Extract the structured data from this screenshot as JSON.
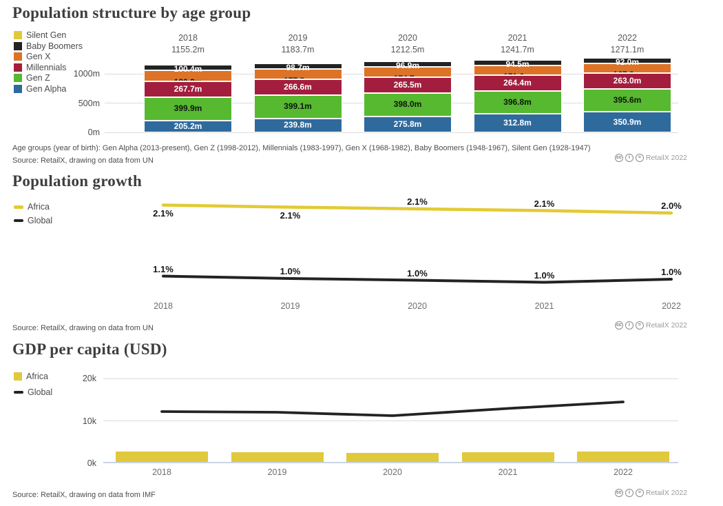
{
  "badge": {
    "label": "RetailX 2022",
    "icons": [
      {
        "name": "cc-icon",
        "glyph": "cc"
      },
      {
        "name": "attribution-icon",
        "glyph": "i"
      },
      {
        "name": "no-derivatives-icon",
        "glyph": "="
      }
    ]
  },
  "chart1": {
    "title": "Population structure by age group",
    "footnote": "Age groups (year of birth): Gen Alpha (2013-present), Gen Z (1998-2012), Millennials (1983-1997), Gen X (1968-1982), Baby Boomers (1948-1967), Silent Gen (1928-1947)",
    "source": "Source: RetailX, drawing on data from UN",
    "chart_data": {
      "type": "bar",
      "stacked": true,
      "categories": [
        "2018",
        "2019",
        "2020",
        "2021",
        "2022"
      ],
      "totals": [
        "1155.2m",
        "1183.7m",
        "1212.5m",
        "1241.7m",
        "1271.1m"
      ],
      "ylabel": "",
      "yticks": [
        {
          "value": 0,
          "label": "0m"
        },
        {
          "value": 500,
          "label": "500m"
        },
        {
          "value": 1000,
          "label": "1000m"
        }
      ],
      "unit": "m",
      "legend_position": "top-left",
      "series": [
        {
          "name": "Silent Gen",
          "color": "#e0c93c",
          "values": [
            1.8,
            1.7,
            1.6,
            1.6,
            1.7
          ],
          "show_labels": false,
          "estimated": true
        },
        {
          "name": "Baby Boomers",
          "color": "#232323",
          "values": [
            100.4,
            98.7,
            96.9,
            94.5,
            92.0
          ],
          "show_labels": true,
          "label_color": "#ffffff"
        },
        {
          "name": "Gen X",
          "color": "#dd7327",
          "values": [
            180.2,
            177.8,
            174.7,
            171.6,
            167.9
          ],
          "show_labels": false,
          "estimated": true
        },
        {
          "name": "Millennials",
          "color": "#a31e3e",
          "values": [
            267.7,
            266.6,
            265.5,
            264.4,
            263.0
          ],
          "show_labels": true,
          "label_color": "#ffffff"
        },
        {
          "name": "Gen Z",
          "color": "#56b92f",
          "values": [
            399.9,
            399.1,
            398.0,
            396.8,
            395.6
          ],
          "show_labels": true,
          "label_color": "#141414"
        },
        {
          "name": "Gen Alpha",
          "color": "#2f6a9d",
          "values": [
            205.2,
            239.8,
            275.8,
            312.8,
            350.9
          ],
          "show_labels": true,
          "label_color": "#ffffff"
        }
      ]
    }
  },
  "chart2": {
    "title": "Population growth",
    "source": "Source: RetailX, drawing on data from UN",
    "chart_data": {
      "type": "line",
      "x": [
        "2018",
        "2019",
        "2020",
        "2021",
        "2022"
      ],
      "ylim": [
        0.7,
        2.25
      ],
      "grid": false,
      "legend_position": "left",
      "series": [
        {
          "name": "Africa",
          "color": "#e3ca33",
          "values": [
            2.1,
            2.1,
            2.1,
            2.1,
            2.0
          ],
          "labels": [
            "2.1%",
            "2.1%",
            "2.1%",
            "2.1%",
            "2.0%"
          ],
          "label_side": [
            "below",
            "below",
            "above",
            "above",
            "above"
          ]
        },
        {
          "name": "Global",
          "color": "#232323",
          "values": [
            1.1,
            1.0,
            1.0,
            1.0,
            1.0
          ],
          "labels": [
            "1.1%",
            "1.0%",
            "1.0%",
            "1.0%",
            "1.0%"
          ],
          "label_side": [
            "above",
            "above",
            "above",
            "above",
            "above"
          ]
        }
      ]
    }
  },
  "chart3": {
    "title": "GDP per capita (USD)",
    "source": "Source: RetailX, drawing on data from IMF",
    "chart_data": {
      "type": "bar+line",
      "x": [
        "2018",
        "2019",
        "2020",
        "2021",
        "2022"
      ],
      "ylim": [
        0,
        21.8
      ],
      "yticks": [
        {
          "value": 0,
          "label": "0k"
        },
        {
          "value": 10,
          "label": "10k"
        },
        {
          "value": 20,
          "label": "20k"
        }
      ],
      "grid": true,
      "legend_position": "left",
      "series": [
        {
          "name": "Africa",
          "type": "bar",
          "color": "#e0c93c",
          "values": [
            2.4,
            2.35,
            2.1,
            2.25,
            2.4
          ],
          "estimated": true
        },
        {
          "name": "Global",
          "type": "line",
          "color": "#232323",
          "values": [
            12.2,
            12.0,
            11.2,
            12.9,
            14.5
          ],
          "estimated": true
        }
      ]
    }
  }
}
